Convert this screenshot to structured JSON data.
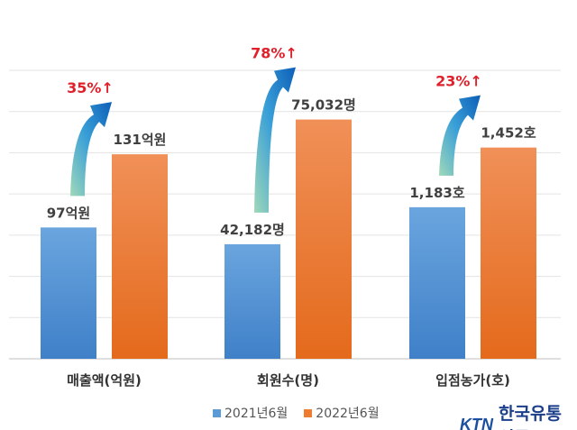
{
  "chart_data": {
    "type": "bar",
    "categories": [
      "매출액(억원)",
      "회원수(명)",
      "입점농가(호)"
    ],
    "series": [
      {
        "name": "2021년6월",
        "color": "#5b9bd5",
        "values": [
          97,
          42182,
          1183
        ],
        "labels": [
          "97억원",
          "42,182명",
          "1,183호"
        ]
      },
      {
        "name": "2022년6월",
        "color": "#ed7d31",
        "values": [
          131,
          75032,
          1452
        ],
        "labels": [
          "131억원",
          "75,032명",
          "1,452호"
        ]
      }
    ],
    "growth_labels": [
      "35%↑",
      "78%↑",
      "23%↑"
    ],
    "growth_color": "#e0202a",
    "group_ylim": [
      [
        36,
        170
      ],
      [
        12000,
        88000
      ],
      [
        500,
        1800
      ]
    ],
    "grid": true,
    "legend_position": "bottom"
  },
  "logo": {
    "brand": "KTN",
    "name": "한국유통신문"
  }
}
